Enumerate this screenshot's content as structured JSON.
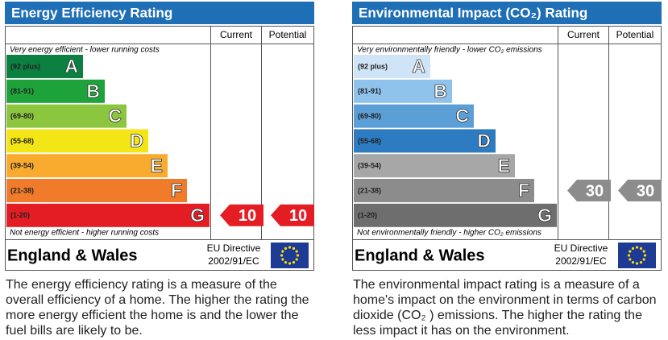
{
  "panels": [
    {
      "title": "Energy Efficiency Rating",
      "columns": [
        "Current",
        "Potential"
      ],
      "top_note": "Very energy efficient - lower running costs",
      "bottom_note": "Not energy efficient - higher running costs",
      "bands": [
        {
          "range": "(92 plus)",
          "letter": "A",
          "color": "#0c8040"
        },
        {
          "range": "(81-91)",
          "letter": "B",
          "color": "#1ea23a"
        },
        {
          "range": "(69-80)",
          "letter": "C",
          "color": "#8cc63f"
        },
        {
          "range": "(55-68)",
          "letter": "D",
          "color": "#f4e616"
        },
        {
          "range": "(39-54)",
          "letter": "E",
          "color": "#f9ab2f"
        },
        {
          "range": "(21-38)",
          "letter": "F",
          "color": "#ef7b2b"
        },
        {
          "range": "(1-20)",
          "letter": "G",
          "color": "#e31d23"
        }
      ],
      "current": 10,
      "potential": 10,
      "arrow_color": "#e31d23",
      "region": "England & Wales",
      "directive": [
        "EU Directive",
        "2002/91/EC"
      ],
      "description": "The energy efficiency rating is a measure of the overall efficiency of a home. The higher the rating the more energy efficient the home is and the lower the fuel bills are likely to be."
    },
    {
      "title": "Environmental Impact (CO₂) Rating",
      "columns": [
        "Current",
        "Potential"
      ],
      "top_note": "Very environmentally friendly - lower CO₂ emissions",
      "bottom_note": "Not environmentally friendly - higher CO₂ emissions",
      "bands": [
        {
          "range": "(92 plus)",
          "letter": "A",
          "color": "#cfe5f7"
        },
        {
          "range": "(81-91)",
          "letter": "B",
          "color": "#8fc3ec"
        },
        {
          "range": "(69-80)",
          "letter": "C",
          "color": "#5c9fd7"
        },
        {
          "range": "(55-68)",
          "letter": "D",
          "color": "#2d7bc1"
        },
        {
          "range": "(39-54)",
          "letter": "E",
          "color": "#a7a7a7"
        },
        {
          "range": "(21-38)",
          "letter": "F",
          "color": "#8c8c8c"
        },
        {
          "range": "(1-20)",
          "letter": "G",
          "color": "#6e6e6e"
        }
      ],
      "current": 30,
      "potential": 30,
      "arrow_color": "#8c8c8c",
      "region": "England & Wales",
      "directive": [
        "EU Directive",
        "2002/91/EC"
      ],
      "description": "The environmental impact rating is a measure of a home's impact on the environment in terms of carbon dioxide (CO₂ ) emissions. The higher the rating the less impact it has on the environment."
    }
  ]
}
